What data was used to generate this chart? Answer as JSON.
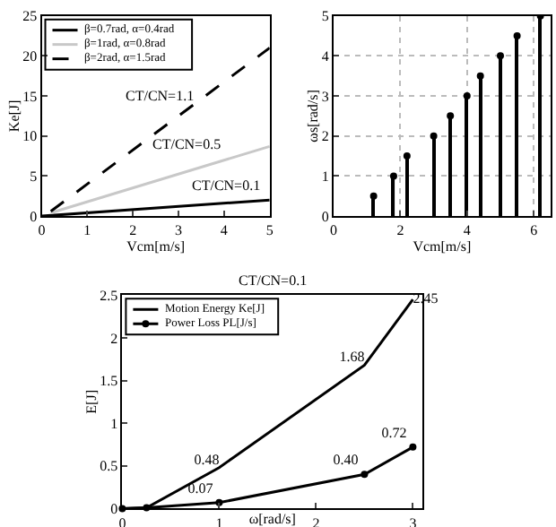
{
  "chart_data": [
    {
      "type": "line",
      "xlabel": "Vcm[m/s]",
      "ylabel": "Ke[J]",
      "xlim": [
        0,
        5
      ],
      "ylim": [
        0,
        25
      ],
      "xticks": [
        0,
        1,
        2,
        3,
        4,
        5
      ],
      "yticks": [
        0,
        5,
        10,
        15,
        20,
        25
      ],
      "grid": false,
      "legend": "top left",
      "series": [
        {
          "name": "β=0.7rad, α=0.4rad",
          "color": "#000000",
          "line_style": "solid",
          "x": [
            0,
            5
          ],
          "values": [
            0,
            2
          ]
        },
        {
          "name": "β=1rad, α=0.8rad",
          "color": "#c8c8c8",
          "line_style": "solid",
          "x": [
            0.2,
            5
          ],
          "values": [
            0.4,
            8.7
          ]
        },
        {
          "name": "β=2rad, α=1.5rad",
          "color": "#000000",
          "line_style": "dashed",
          "x": [
            0.2,
            5
          ],
          "values": [
            0.6,
            21
          ]
        }
      ],
      "annotations": [
        "CT/CN=1.1",
        "CT/CN=0.5",
        "CT/CN=0.1"
      ]
    },
    {
      "type": "lollipop",
      "xlabel": "Vcm[m/s]",
      "ylabel": "ωs[rad/s]",
      "xlim": [
        0,
        6.5
      ],
      "ylim": [
        0,
        5
      ],
      "xticks": [
        0,
        2,
        4,
        6
      ],
      "yticks": [
        0,
        1,
        2,
        3,
        4,
        5
      ],
      "grid": true,
      "color": "#000000",
      "marker": "circle",
      "x": [
        1.2,
        1.8,
        2.2,
        3,
        3.5,
        4,
        4.4,
        5,
        5.5,
        6.2
      ],
      "values": [
        0.5,
        1,
        1.5,
        2,
        2.5,
        3,
        3.5,
        4,
        4.5,
        5
      ]
    },
    {
      "type": "line",
      "title": "CT/CN=0.1",
      "xlabel": "ω[rad/s]",
      "ylabel": "E[J]",
      "xlim": [
        0,
        3.1
      ],
      "ylim": [
        0,
        2.5
      ],
      "xticks": [
        0,
        1,
        2,
        3
      ],
      "yticks": [
        0,
        0.5,
        1,
        1.5,
        2,
        2.5
      ],
      "grid": false,
      "legend": "top left",
      "series": [
        {
          "name": "Motion Energy Ke[J]",
          "color": "#000000",
          "marker": "none",
          "x": [
            0,
            0.25,
            1,
            2.5,
            3
          ],
          "values": [
            0,
            0.01,
            0.48,
            1.68,
            2.45
          ],
          "value_labels": [
            null,
            null,
            "0.48",
            "1.68",
            "2.45"
          ]
        },
        {
          "name": "Power Loss PL[J/s]",
          "color": "#000000",
          "marker": "circle",
          "x": [
            0,
            0.25,
            1,
            2.5,
            3
          ],
          "values": [
            0,
            0.01,
            0.07,
            0.4,
            0.72
          ],
          "value_labels": [
            null,
            null,
            "0.07",
            "0.40",
            "0.72"
          ]
        }
      ]
    }
  ]
}
